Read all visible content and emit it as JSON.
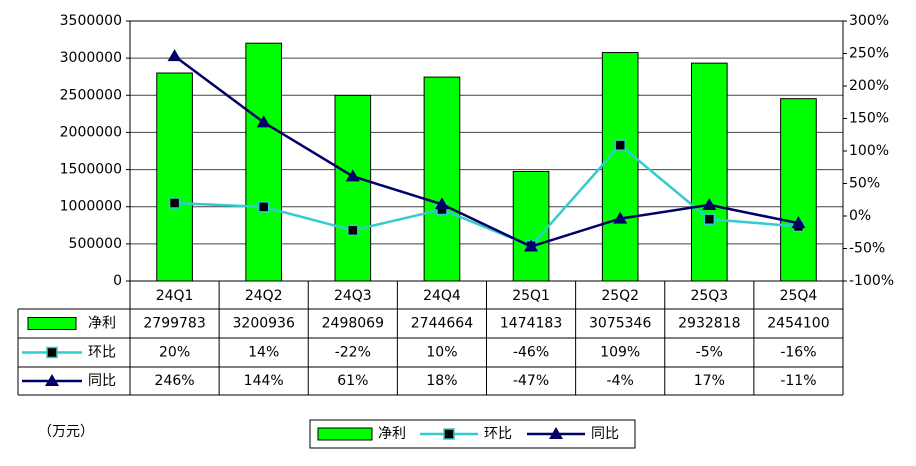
{
  "chart_data": {
    "type": "bar-line",
    "categories": [
      "24Q1",
      "24Q2",
      "24Q3",
      "24Q4",
      "25Q1",
      "25Q2",
      "25Q3",
      "25Q4"
    ],
    "series": [
      {
        "name": "净利",
        "type": "bar",
        "color": "#00ff00",
        "values": [
          2799783,
          3200936,
          2498069,
          2744664,
          1474183,
          3075346,
          2932818,
          2454100
        ]
      },
      {
        "name": "环比",
        "type": "line",
        "axis": "y2",
        "marker": "square",
        "color": "#33cccc",
        "values": [
          20,
          14,
          -22,
          10,
          -46,
          109,
          -5,
          -16
        ],
        "value_labels": [
          "20%",
          "14%",
          "-22%",
          "10%",
          "-46%",
          "109%",
          "-5%",
          "-16%"
        ]
      },
      {
        "name": "同比",
        "type": "line",
        "axis": "y2",
        "marker": "triangle",
        "color": "#000066",
        "values": [
          246,
          144,
          61,
          18,
          -47,
          -4,
          17,
          -11
        ],
        "value_labels": [
          "246%",
          "144%",
          "61%",
          "18%",
          "-47%",
          "-4%",
          "17%",
          "-11%"
        ]
      }
    ],
    "ylim": [
      0,
      3500000
    ],
    "yticks": [
      0,
      500000,
      1000000,
      1500000,
      2000000,
      2500000,
      3000000,
      3500000
    ],
    "y2lim": [
      -100,
      300
    ],
    "y2ticks": [
      {
        "value": -100,
        "label": "-100%"
      },
      {
        "value": -50,
        "label": "-50%"
      },
      {
        "value": 0,
        "label": "0%"
      },
      {
        "value": 50,
        "label": "50%"
      },
      {
        "value": 100,
        "label": "100%"
      },
      {
        "value": 150,
        "label": "150%"
      },
      {
        "value": 200,
        "label": "200%"
      },
      {
        "value": 250,
        "label": "250%"
      },
      {
        "value": 300,
        "label": "300%"
      }
    ],
    "grid": true,
    "unit_label": "（万元）"
  }
}
